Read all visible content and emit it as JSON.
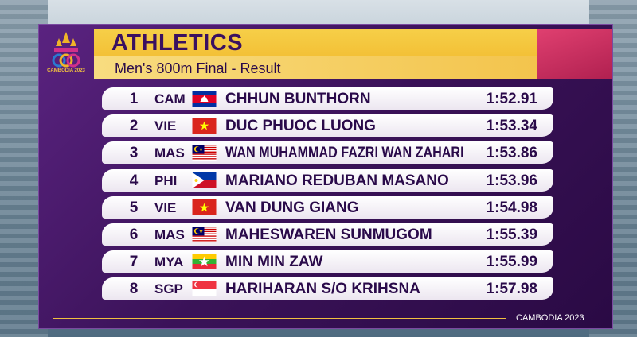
{
  "logo_text": "CAMBODIA 2023",
  "header": {
    "title": "ATHLETICS",
    "subtitle": "Men's 800m Final - Result"
  },
  "results": [
    {
      "rank": 1,
      "country": "CAM",
      "athlete": "CHHUN BUNTHORN",
      "time": "1:52.91"
    },
    {
      "rank": 2,
      "country": "VIE",
      "athlete": "DUC PHUOC LUONG",
      "time": "1:53.34"
    },
    {
      "rank": 3,
      "country": "MAS",
      "athlete": "WAN MUHAMMAD FAZRI WAN ZAHARI",
      "time": "1:53.86"
    },
    {
      "rank": 4,
      "country": "PHI",
      "athlete": "MARIANO REDUBAN MASANO",
      "time": "1:53.96"
    },
    {
      "rank": 5,
      "country": "VIE",
      "athlete": "VAN DUNG GIANG",
      "time": "1:54.98"
    },
    {
      "rank": 6,
      "country": "MAS",
      "athlete": "MAHESWAREN SUNMUGOM",
      "time": "1:55.39"
    },
    {
      "rank": 7,
      "country": "MYA",
      "athlete": "MIN MIN ZAW",
      "time": "1:55.99"
    },
    {
      "rank": 8,
      "country": "SGP",
      "athlete": "HARIHARAN S/O KRIHSNA",
      "time": "1:57.98"
    }
  ],
  "footer": "CAMBODIA 2023"
}
